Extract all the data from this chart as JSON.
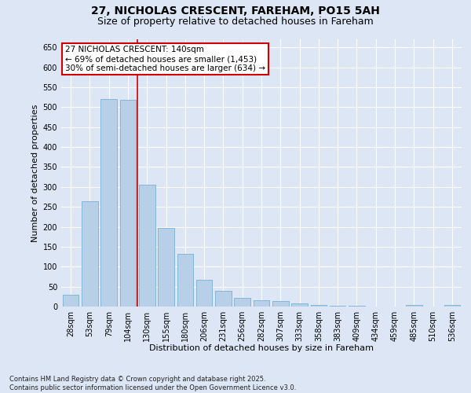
{
  "title": "27, NICHOLAS CRESCENT, FAREHAM, PO15 5AH",
  "subtitle": "Size of property relative to detached houses in Fareham",
  "xlabel": "Distribution of detached houses by size in Fareham",
  "ylabel": "Number of detached properties",
  "categories": [
    "28sqm",
    "53sqm",
    "79sqm",
    "104sqm",
    "130sqm",
    "155sqm",
    "180sqm",
    "206sqm",
    "231sqm",
    "256sqm",
    "282sqm",
    "307sqm",
    "333sqm",
    "358sqm",
    "383sqm",
    "409sqm",
    "434sqm",
    "459sqm",
    "485sqm",
    "510sqm",
    "536sqm"
  ],
  "values": [
    30,
    265,
    520,
    518,
    305,
    198,
    133,
    67,
    40,
    22,
    15,
    14,
    7,
    4,
    2,
    1,
    0,
    0,
    3,
    0,
    3
  ],
  "bar_color": "#b8cfe8",
  "bar_edge_color": "#7aafd4",
  "vline_x": 3.5,
  "vline_color": "#cc0000",
  "annotation_text": "27 NICHOLAS CRESCENT: 140sqm\n← 69% of detached houses are smaller (1,453)\n30% of semi-detached houses are larger (634) →",
  "annotation_box_facecolor": "#ffffff",
  "annotation_box_edgecolor": "#cc0000",
  "footer_line1": "Contains HM Land Registry data © Crown copyright and database right 2025.",
  "footer_line2": "Contains public sector information licensed under the Open Government Licence v3.0.",
  "ylim": [
    0,
    670
  ],
  "yticks": [
    0,
    50,
    100,
    150,
    200,
    250,
    300,
    350,
    400,
    450,
    500,
    550,
    600,
    650
  ],
  "background_color": "#dce6f5",
  "title_fontsize": 10,
  "subtitle_fontsize": 9,
  "tick_fontsize": 7,
  "xlabel_fontsize": 8,
  "ylabel_fontsize": 8,
  "annotation_fontsize": 7.5,
  "footer_fontsize": 6
}
